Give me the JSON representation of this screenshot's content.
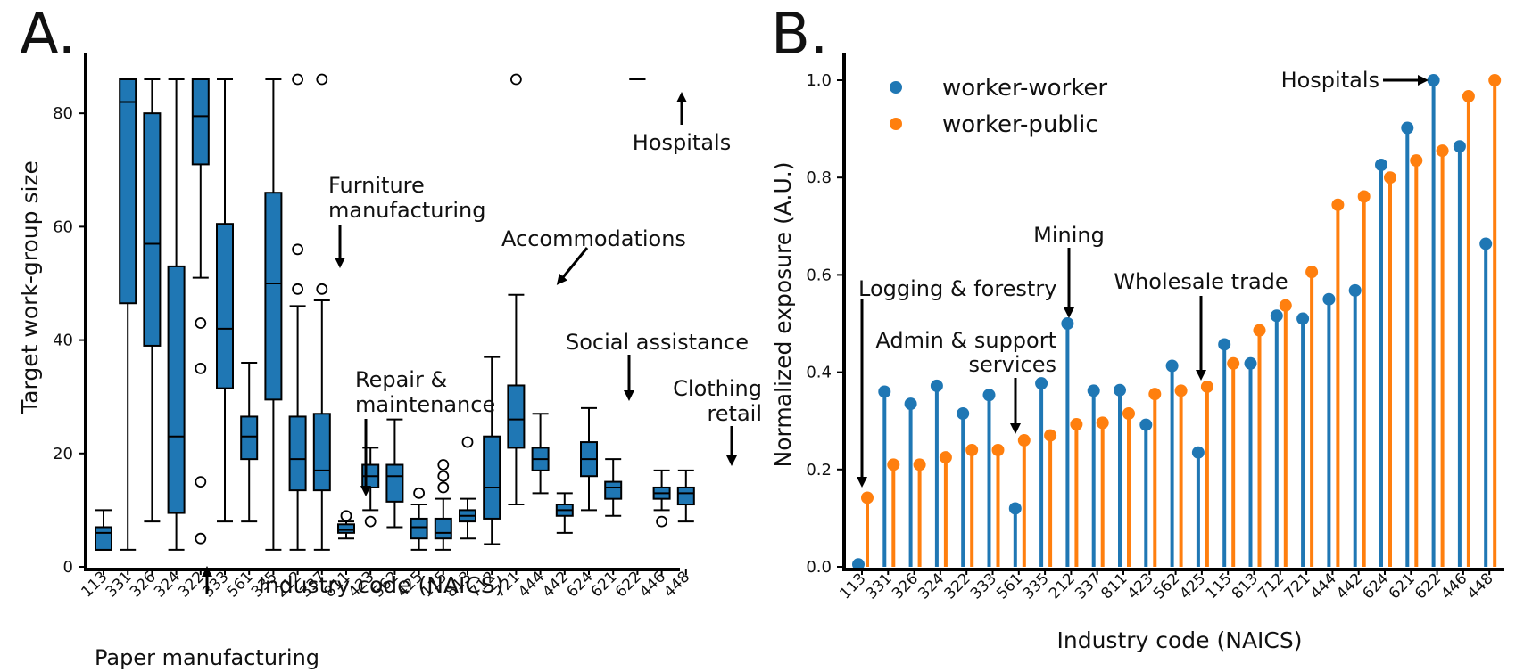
{
  "colors": {
    "blue": "#1f77b4",
    "orange": "#ff7f0e",
    "ink": "#000000"
  },
  "chart_data": [
    {
      "panel": "A.",
      "type": "box",
      "xlabel": "Industry code (NAICS)",
      "ylabel": "Target work-group size",
      "ylim": [
        0,
        86
      ],
      "yticks": [
        0,
        20,
        40,
        60,
        80
      ],
      "categories": [
        "113",
        "331",
        "326",
        "324",
        "322",
        "333",
        "561",
        "335",
        "212",
        "337",
        "811",
        "423",
        "562",
        "425",
        "115",
        "813",
        "712",
        "721",
        "444",
        "442",
        "624",
        "621",
        "622",
        "446",
        "448"
      ],
      "boxes": [
        {
          "code": "113",
          "q1": 3,
          "median": 6,
          "q3": 7,
          "lo": 3,
          "hi": 10,
          "outliers": []
        },
        {
          "code": "331",
          "q1": 46.5,
          "median": 82,
          "q3": 86,
          "lo": 3,
          "hi": 86,
          "outliers": []
        },
        {
          "code": "326",
          "q1": 39,
          "median": 57,
          "q3": 80,
          "lo": 8,
          "hi": 86,
          "outliers": []
        },
        {
          "code": "324",
          "q1": 9.5,
          "median": 23,
          "q3": 53,
          "lo": 3,
          "hi": 86,
          "outliers": []
        },
        {
          "code": "322",
          "q1": 71,
          "median": 79.5,
          "q3": 86,
          "lo": 51,
          "hi": 86,
          "outliers": [
            43,
            35,
            15,
            5
          ]
        },
        {
          "code": "333",
          "q1": 31.5,
          "median": 42,
          "q3": 60.5,
          "lo": 8,
          "hi": 86,
          "outliers": []
        },
        {
          "code": "561",
          "q1": 19,
          "median": 23,
          "q3": 26.5,
          "lo": 8,
          "hi": 36,
          "outliers": []
        },
        {
          "code": "335",
          "q1": 29.5,
          "median": 50,
          "q3": 66,
          "lo": 3,
          "hi": 86,
          "outliers": []
        },
        {
          "code": "212",
          "q1": 13.5,
          "median": 19,
          "q3": 26.5,
          "lo": 3,
          "hi": 46,
          "outliers": [
            49,
            56,
            86
          ]
        },
        {
          "code": "337",
          "q1": 13.5,
          "median": 17,
          "q3": 27,
          "lo": 3,
          "hi": 47,
          "outliers": [
            49,
            86
          ]
        },
        {
          "code": "811",
          "q1": 6,
          "median": 6.5,
          "q3": 7.5,
          "lo": 5,
          "hi": 8,
          "outliers": [
            9
          ]
        },
        {
          "code": "423",
          "q1": 14,
          "median": 16,
          "q3": 18,
          "lo": 10,
          "hi": 21,
          "outliers": [
            8
          ]
        },
        {
          "code": "562",
          "q1": 11.5,
          "median": 16,
          "q3": 18,
          "lo": 7,
          "hi": 26,
          "outliers": []
        },
        {
          "code": "425",
          "q1": 5,
          "median": 7,
          "q3": 8.5,
          "lo": 3,
          "hi": 11,
          "outliers": [
            13
          ]
        },
        {
          "code": "115",
          "q1": 5,
          "median": 6,
          "q3": 8.5,
          "lo": 3,
          "hi": 12,
          "outliers": [
            14,
            16,
            18
          ]
        },
        {
          "code": "813",
          "q1": 8,
          "median": 9,
          "q3": 10,
          "lo": 5,
          "hi": 12,
          "outliers": [
            22
          ]
        },
        {
          "code": "712",
          "q1": 8.5,
          "median": 14,
          "q3": 23,
          "lo": 4,
          "hi": 37,
          "outliers": []
        },
        {
          "code": "721",
          "q1": 21,
          "median": 26,
          "q3": 32,
          "lo": 11,
          "hi": 48,
          "outliers": [
            86
          ]
        },
        {
          "code": "444",
          "q1": 17,
          "median": 19,
          "q3": 21,
          "lo": 13,
          "hi": 27,
          "outliers": []
        },
        {
          "code": "442",
          "q1": 9,
          "median": 10,
          "q3": 11,
          "lo": 6,
          "hi": 13,
          "outliers": []
        },
        {
          "code": "624",
          "q1": 16,
          "median": 19,
          "q3": 22,
          "lo": 10,
          "hi": 28,
          "outliers": []
        },
        {
          "code": "621",
          "q1": 12,
          "median": 14,
          "q3": 15,
          "lo": 9,
          "hi": 19,
          "outliers": []
        },
        {
          "code": "622",
          "q1": 86,
          "median": 86,
          "q3": 86,
          "lo": 86,
          "hi": 86,
          "outliers": []
        },
        {
          "code": "446",
          "q1": 12,
          "median": 13,
          "q3": 14,
          "lo": 10,
          "hi": 17,
          "outliers": [
            8
          ]
        },
        {
          "code": "448",
          "q1": 11,
          "median": 13,
          "q3": 14,
          "lo": 8,
          "hi": 17,
          "outliers": []
        }
      ],
      "annotations": {
        "paper": "Paper manufacturing",
        "furniture_1": "Furniture",
        "furniture_2": "manufacturing",
        "accommodations": "Accommodations",
        "hospitals": "Hospitals",
        "repair_1": "Repair &",
        "repair_2": "maintenance",
        "social": "Social assistance",
        "clothing_1": "Clothing",
        "clothing_2": "retail"
      }
    },
    {
      "panel": "B.",
      "type": "lollipop",
      "xlabel": "Industry code (NAICS)",
      "ylabel": "Normalized exposure (A.U.)",
      "ylim": [
        0,
        1.0
      ],
      "yticks": [
        0.0,
        0.2,
        0.4,
        0.6,
        0.8,
        1.0
      ],
      "categories": [
        "113",
        "331",
        "326",
        "324",
        "322",
        "333",
        "561",
        "335",
        "212",
        "337",
        "811",
        "423",
        "562",
        "425",
        "115",
        "813",
        "712",
        "721",
        "444",
        "442",
        "624",
        "621",
        "622",
        "446",
        "448"
      ],
      "series": [
        {
          "name": "worker-worker",
          "color": "blue",
          "values": [
            0.005,
            0.36,
            0.335,
            0.372,
            0.315,
            0.353,
            0.12,
            0.377,
            0.5,
            0.362,
            0.363,
            0.292,
            0.413,
            0.235,
            0.457,
            0.418,
            0.516,
            0.51,
            0.55,
            0.568,
            0.826,
            0.902,
            1.0,
            0.864,
            0.664
          ]
        },
        {
          "name": "worker-public",
          "color": "orange",
          "values": [
            0.142,
            0.21,
            0.21,
            0.225,
            0.24,
            0.24,
            0.26,
            0.27,
            0.293,
            0.296,
            0.315,
            0.355,
            0.362,
            0.37,
            0.418,
            0.486,
            0.537,
            0.606,
            0.744,
            0.761,
            0.8,
            0.835,
            0.855,
            0.967,
            1.0
          ]
        }
      ],
      "annotations": {
        "logging": "Logging & forestry",
        "admin_1": "Admin & support",
        "admin_2": "services",
        "mining": "Mining",
        "wholesale": "Wholesale trade",
        "hospitals": "Hospitals"
      }
    }
  ]
}
